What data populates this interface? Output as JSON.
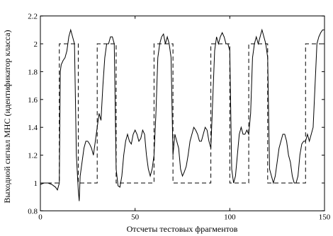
{
  "chart_data": {
    "type": "line",
    "xlabel": "Отсчеты тестовых фрагментов",
    "ylabel": "Выходной сигнал МНС (идентификатор класса)",
    "xlim": [
      0,
      150
    ],
    "xticks": [
      0,
      50,
      100,
      150
    ],
    "ylim": [
      0.8,
      2.2
    ],
    "yticks": [
      0.8,
      1,
      1.2,
      1.4,
      1.6,
      1.8,
      2,
      2.2
    ],
    "series": [
      {
        "color": "#000000",
        "dash": false,
        "x": [
          0,
          2,
          4,
          6,
          8,
          9,
          10,
          10.5,
          11,
          12,
          13,
          14,
          15,
          16,
          17,
          18,
          19,
          20,
          20.5,
          21,
          22,
          23,
          24,
          25,
          26,
          27,
          28,
          29,
          30,
          31,
          32,
          33,
          34,
          35,
          36,
          37,
          38,
          39,
          40,
          41,
          42,
          43,
          44,
          45,
          46,
          47,
          48,
          49,
          50,
          51,
          52,
          53,
          54,
          55,
          56,
          57,
          58,
          59,
          60,
          61,
          62,
          63,
          64,
          65,
          66,
          67,
          68,
          69,
          70,
          71,
          72,
          73,
          74,
          75,
          76,
          77,
          78,
          79,
          80,
          81,
          82,
          83,
          84,
          85,
          86,
          87,
          88,
          89,
          90,
          91,
          92,
          93,
          94,
          95,
          96,
          97,
          98,
          99,
          100,
          101,
          102,
          103,
          104,
          105,
          106,
          107,
          108,
          109,
          110,
          111,
          112,
          113,
          114,
          115,
          116,
          117,
          118,
          119,
          120,
          121,
          122,
          123,
          124,
          125,
          126,
          127,
          128,
          129,
          130,
          131,
          132,
          133,
          134,
          135,
          136,
          137,
          138,
          139,
          140,
          141,
          142,
          143,
          144,
          145,
          146,
          147,
          148,
          149,
          150
        ],
        "values": [
          0.99,
          1.0,
          1.0,
          0.99,
          0.97,
          0.95,
          1.0,
          1.8,
          1.85,
          1.88,
          1.9,
          1.95,
          2.05,
          2.1,
          2.05,
          2.0,
          1.2,
          0.95,
          0.87,
          1.05,
          1.15,
          1.25,
          1.3,
          1.3,
          1.28,
          1.25,
          1.2,
          1.3,
          1.4,
          1.5,
          1.45,
          1.7,
          1.9,
          2.0,
          2.0,
          2.05,
          2.05,
          2.0,
          1.1,
          0.98,
          0.97,
          1.05,
          1.2,
          1.3,
          1.35,
          1.3,
          1.28,
          1.35,
          1.38,
          1.35,
          1.3,
          1.32,
          1.38,
          1.35,
          1.2,
          1.1,
          1.05,
          1.1,
          1.2,
          1.5,
          1.9,
          2.0,
          2.05,
          2.07,
          2.0,
          2.05,
          2.0,
          1.9,
          1.2,
          1.35,
          1.3,
          1.25,
          1.1,
          1.05,
          1.08,
          1.12,
          1.2,
          1.3,
          1.35,
          1.4,
          1.38,
          1.35,
          1.3,
          1.3,
          1.35,
          1.4,
          1.38,
          1.3,
          1.25,
          1.6,
          1.95,
          2.05,
          2.0,
          2.05,
          2.08,
          2.05,
          2.0,
          2.0,
          1.95,
          1.1,
          1.0,
          1.05,
          1.2,
          1.35,
          1.4,
          1.35,
          1.35,
          1.38,
          1.35,
          1.5,
          1.9,
          2.0,
          2.05,
          2.0,
          2.05,
          2.1,
          2.05,
          2.0,
          1.9,
          1.1,
          1.05,
          1.0,
          1.05,
          1.15,
          1.25,
          1.3,
          1.35,
          1.35,
          1.3,
          1.2,
          1.15,
          1.05,
          1.0,
          1.0,
          1.05,
          1.2,
          1.28,
          1.3,
          1.3,
          1.35,
          1.3,
          1.35,
          1.4,
          1.7,
          2.0,
          2.05,
          2.08,
          2.1,
          2.1
        ]
      },
      {
        "color": "#000000",
        "dash": true,
        "x": [
          0,
          10,
          10,
          20,
          20,
          30,
          30,
          40,
          40,
          60,
          60,
          70,
          70,
          90,
          90,
          100,
          100,
          110,
          110,
          120,
          120,
          140,
          140,
          150
        ],
        "values": [
          1,
          1,
          2,
          2,
          1,
          1,
          2,
          2,
          1,
          1,
          2,
          2,
          1,
          1,
          2,
          2,
          1,
          1,
          2,
          2,
          1,
          1,
          2,
          2
        ]
      }
    ]
  }
}
